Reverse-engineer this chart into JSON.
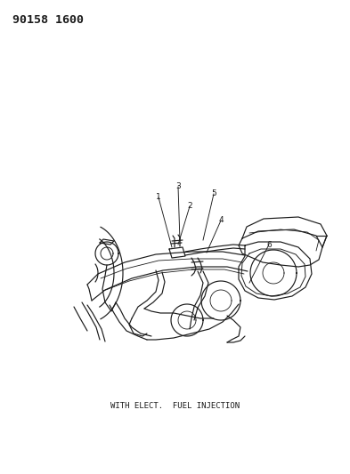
{
  "title_code": "90158 1600",
  "subtitle": "WITH ELECT.  FUEL INJECTION",
  "background_color": "#ffffff",
  "line_color": "#1a1a1a",
  "title_fontsize": 9.5,
  "subtitle_fontsize": 6.5,
  "fig_width": 3.93,
  "fig_height": 5.33,
  "dpi": 100
}
